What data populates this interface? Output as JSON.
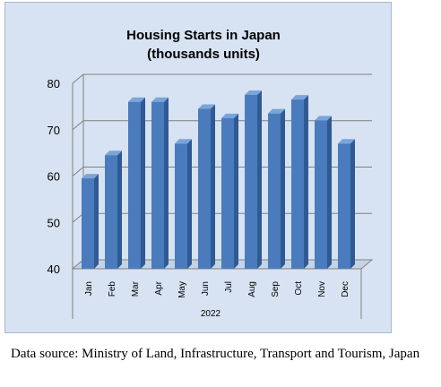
{
  "chart_data": {
    "type": "bar",
    "title_lines": [
      "Housing Starts in Japan",
      "(thousands units)"
    ],
    "categories": [
      "Jan",
      "Feb",
      "Mar",
      "Apr",
      "May",
      "Jun",
      "Jul",
      "Aug",
      "Sep",
      "Oct",
      "Nov",
      "Dec"
    ],
    "values": [
      59.5,
      64.5,
      76,
      76,
      67,
      74.5,
      72.5,
      77.5,
      73.5,
      76.5,
      72,
      67
    ],
    "ylim": [
      40,
      80
    ],
    "yticks": [
      "40",
      "50",
      "60",
      "70",
      "80"
    ],
    "group_label": "2022",
    "grid": true,
    "colors": {
      "bar": "#4a7bbd",
      "bar_dark": "#2f5a93",
      "bar_light": "#7aa5d9",
      "background": "#d7e3f2"
    }
  },
  "source_note": "Data source: Ministry of Land, Infrastructure, Transport and Tourism, Japan"
}
